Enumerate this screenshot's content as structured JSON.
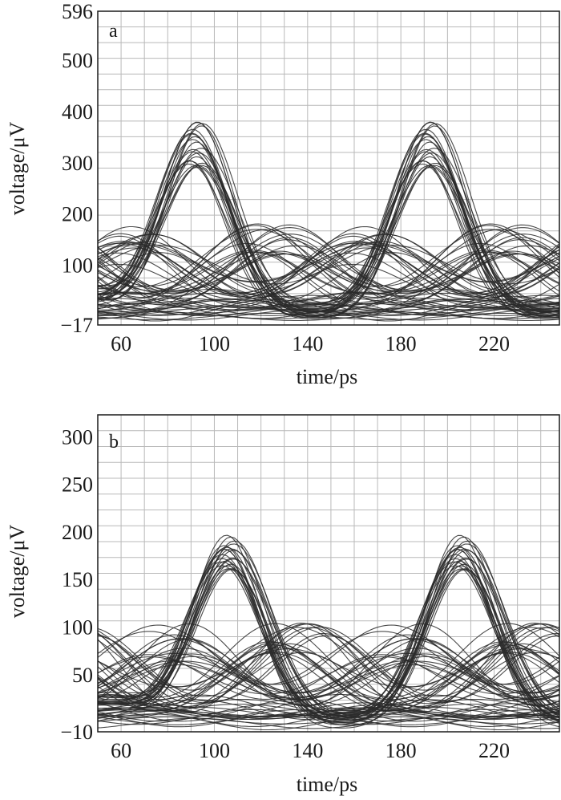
{
  "chart_data": [
    {
      "type": "line",
      "panel_label": "a",
      "xlabel": "time/ps",
      "ylabel": "voltage/μV",
      "xlim": [
        50,
        248
      ],
      "ylim": [
        -17,
        596
      ],
      "x_ticks": [
        60,
        100,
        140,
        180,
        220
      ],
      "y_ticks": [
        -17,
        100,
        200,
        300,
        400,
        500,
        596
      ],
      "x_tick_labels": [
        "60",
        "100",
        "140",
        "180",
        "220"
      ],
      "y_tick_labels": [
        "−17",
        "100",
        "200",
        "300",
        "400",
        "500",
        "596"
      ],
      "grid": true,
      "legend": "none",
      "series_summary": "eye diagram: overlaid signal traces, peaks near x=92 and x=192",
      "peak_value_range": [
        290,
        385
      ],
      "peak_times": [
        92,
        192
      ],
      "mid_hump_range": [
        120,
        185
      ],
      "baseline_range": [
        -10,
        45
      ],
      "trace_color": "#2a2a2a"
    },
    {
      "type": "line",
      "panel_label": "b",
      "xlabel": "time/ps",
      "ylabel": "voltage/μV",
      "xlim": [
        50,
        248
      ],
      "ylim": [
        -10,
        323
      ],
      "x_ticks": [
        60,
        100,
        140,
        180,
        220
      ],
      "y_ticks": [
        -10,
        50,
        100,
        150,
        200,
        250,
        300
      ],
      "x_tick_labels": [
        "60",
        "100",
        "140",
        "180",
        "220"
      ],
      "y_tick_labels": [
        "−10",
        "50",
        "100",
        "150",
        "200",
        "250",
        "300"
      ],
      "grid": true,
      "legend": "none",
      "series_summary": "eye diagram: overlaid signal traces, peaks near x=106 and x=206",
      "peak_value_range": [
        160,
        198
      ],
      "peak_times": [
        106,
        206
      ],
      "mid_hump_range": [
        70,
        105
      ],
      "baseline_range": [
        -8,
        22
      ],
      "trace_color": "#2a2a2a"
    }
  ]
}
